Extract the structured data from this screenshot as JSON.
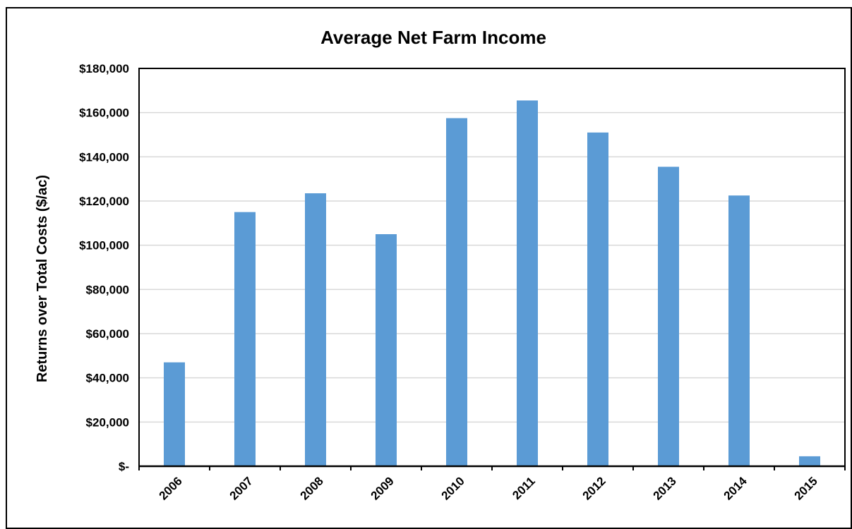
{
  "chart_data": {
    "type": "bar",
    "title": "Average Net Farm Income",
    "xlabel": "",
    "ylabel": "Returns over Total Costs ($/ac)",
    "categories": [
      "2006",
      "2007",
      "2008",
      "2009",
      "2010",
      "2011",
      "2012",
      "2013",
      "2014",
      "2015"
    ],
    "series": [
      {
        "values": [
          47000,
          115000,
          123500,
          105000,
          157500,
          165500,
          151000,
          135500,
          122500,
          4500
        ],
        "color": "#5b9bd5"
      }
    ],
    "ylim": [
      0,
      180000
    ],
    "yticks": [
      0,
      20000,
      40000,
      60000,
      80000,
      100000,
      120000,
      140000,
      160000,
      180000
    ],
    "ytick_labels": [
      "$-",
      "$20,000",
      "$40,000",
      "$60,000",
      "$80,000",
      "$100,000",
      "$120,000",
      "$140,000",
      "$160,000",
      "$180,000"
    ],
    "grid": true,
    "legend": "none"
  }
}
